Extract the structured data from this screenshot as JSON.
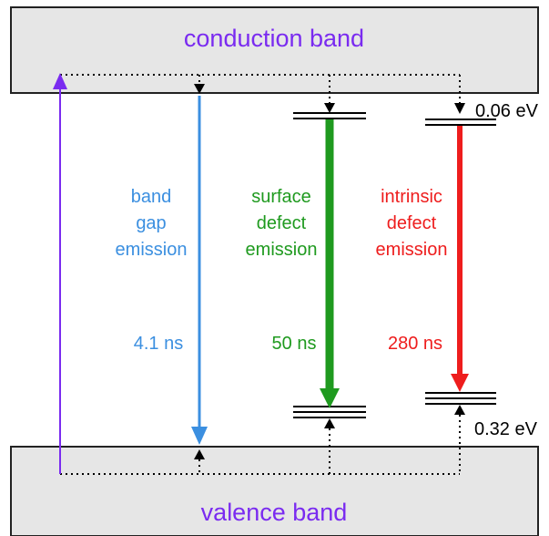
{
  "bands": {
    "conduction": "conduction band",
    "valence": "valence band"
  },
  "emissions": {
    "band_gap": {
      "lines": [
        "band",
        "gap",
        "emission"
      ],
      "lifetime": "4.1 ns",
      "color": "#3b8fe0"
    },
    "surface_defect": {
      "lines": [
        "surface",
        "defect",
        "emission"
      ],
      "lifetime": "50 ns",
      "color": "#1f9a1f"
    },
    "intrinsic_defect": {
      "lines": [
        "intrinsic",
        "defect",
        "emission"
      ],
      "lifetime": "280 ns",
      "color": "#ee1d1d"
    }
  },
  "energies": {
    "upper": "0.06 eV",
    "lower": "0.32 eV"
  },
  "colors": {
    "band_fill": "#e6e6e6",
    "band_text": "#7a2bf0",
    "excitation": "#7a2bf0",
    "relaxation": "#000000"
  }
}
